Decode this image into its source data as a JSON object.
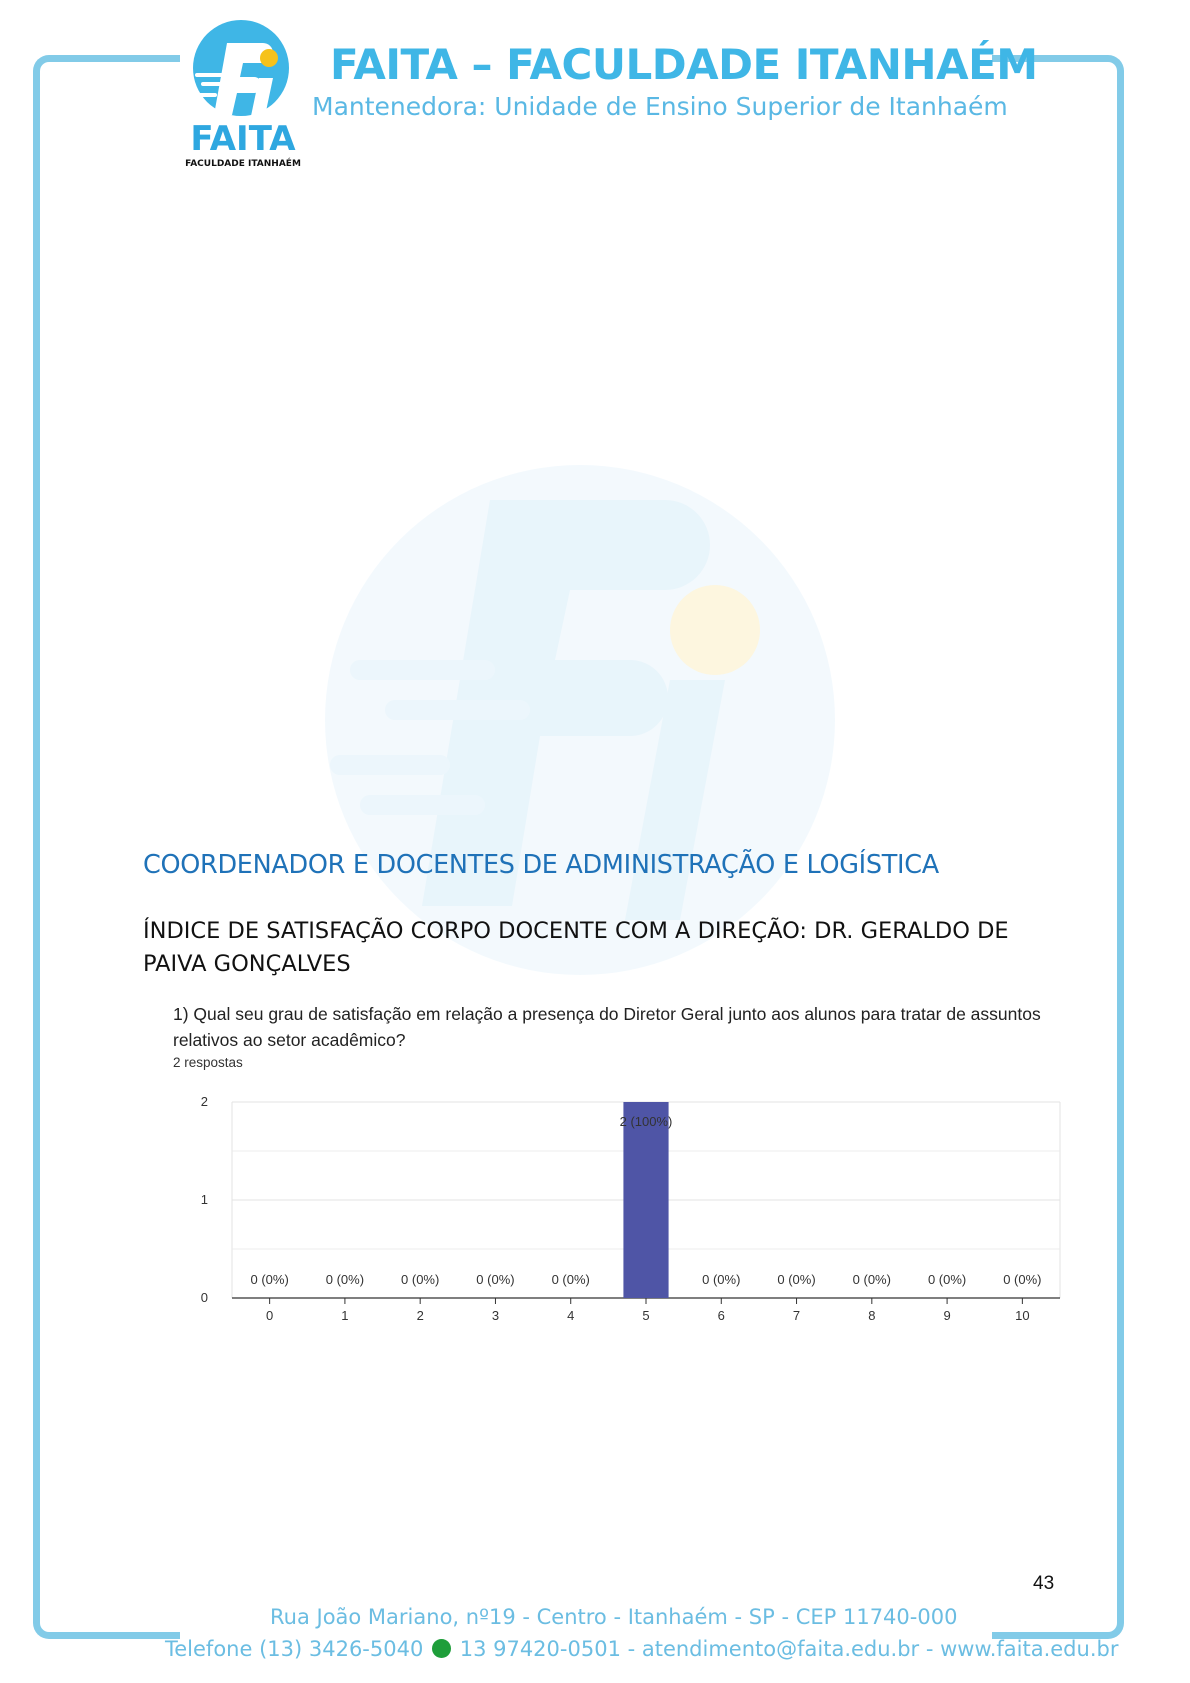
{
  "header": {
    "logo_text": "FAITA",
    "logo_subtext": "FACULDADE ITANHAÉM",
    "title": "FAITA – FACULDADE ITANHAÉM",
    "subtitle": "Mantenedora: Unidade de Ensino Superior de Itanhaém"
  },
  "section_title": "COORDENADOR E DOCENTES DE ADMINISTRAÇÃO E LOGÍSTICA",
  "subheading": "ÍNDICE DE SATISFAÇÃO CORPO DOCENTE COM A DIREÇÃO: DR. GERALDO DE PAIVA GONÇALVES",
  "question": "1)  Qual seu grau de satisfação em relação a presença do Diretor Geral junto aos alunos para tratar de assuntos relativos ao setor acadêmico?",
  "responses": "2 respostas",
  "chart_data": {
    "type": "bar",
    "categories": [
      "0",
      "1",
      "2",
      "3",
      "4",
      "5",
      "6",
      "7",
      "8",
      "9",
      "10"
    ],
    "values": [
      0,
      0,
      0,
      0,
      0,
      2,
      0,
      0,
      0,
      0,
      0
    ],
    "data_labels": [
      "0 (0%)",
      "0 (0%)",
      "0 (0%)",
      "0 (0%)",
      "0 (0%)",
      "2 (100%)",
      "0 (0%)",
      "0 (0%)",
      "0 (0%)",
      "0 (0%)",
      "0 (0%)"
    ],
    "yticks": [
      0,
      1,
      2
    ],
    "ylim": [
      0,
      2
    ],
    "bar_color": "#4f55a6",
    "grid": true
  },
  "page_number": "43",
  "footer": {
    "address": "Rua João Mariano, nº19 - Centro - Itanhaém - SP - CEP 11740-000",
    "contact_left": "Telefone (13) 3426-5040",
    "contact_right": "13 97420-0501 - atendimento@faita.edu.br - www.faita.edu.br"
  },
  "colors": {
    "frame": "#82cbe8",
    "brand_blue": "#3fb6e6",
    "accent_yellow": "#f6c21a",
    "section_title": "#1f72b8"
  }
}
